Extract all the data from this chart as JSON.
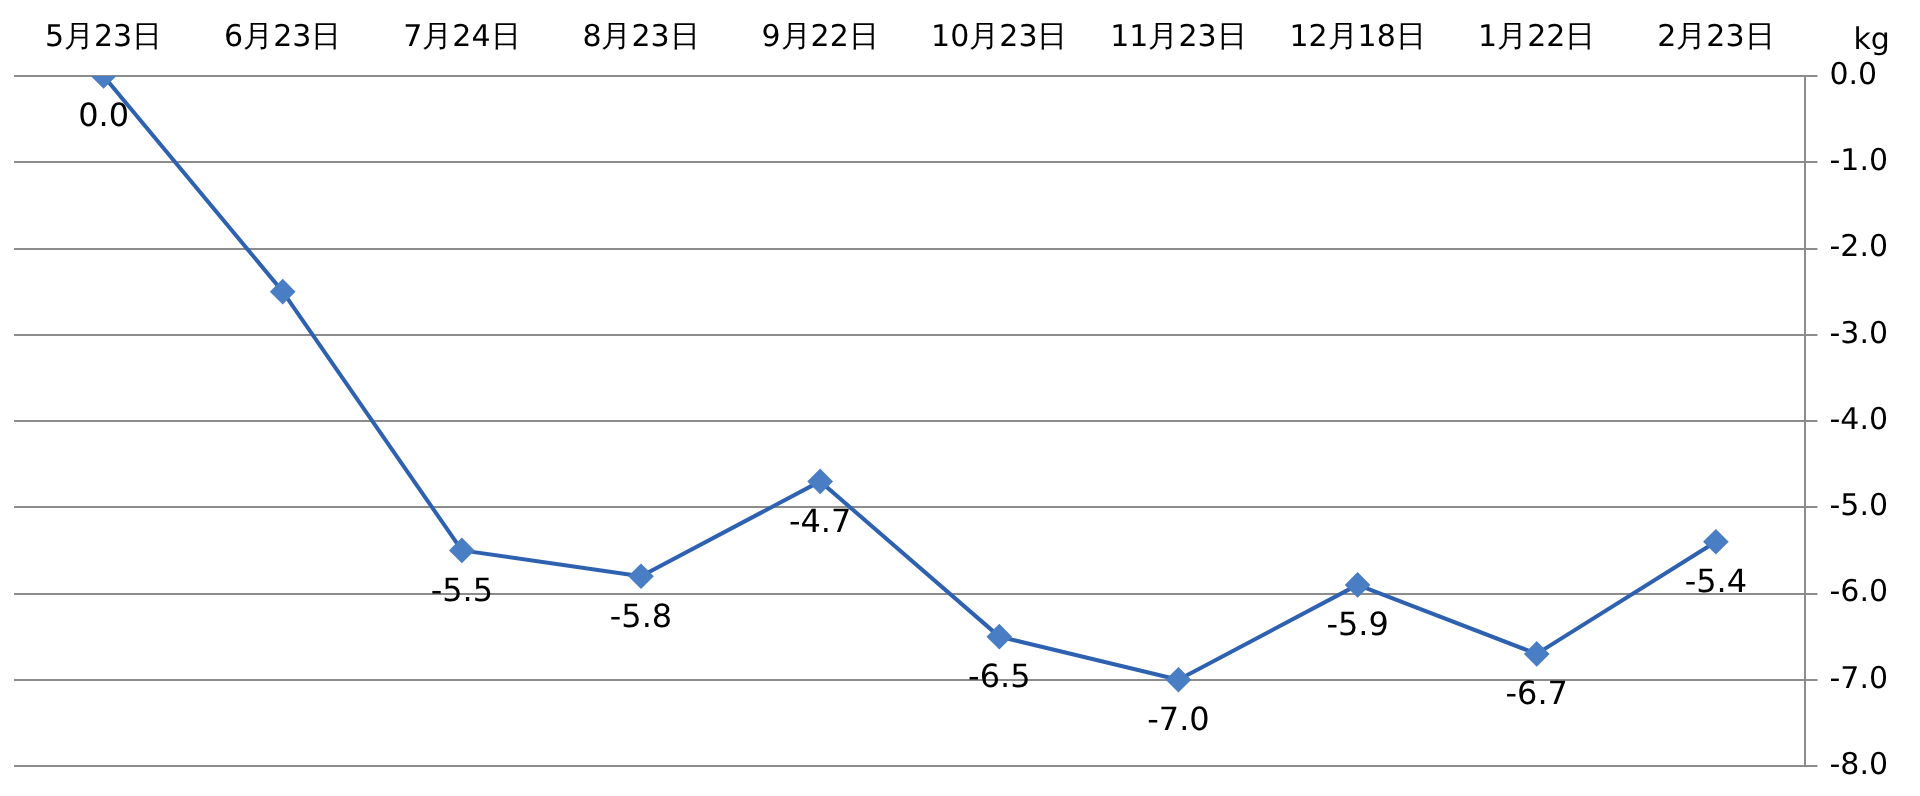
{
  "chart_data": {
    "type": "line",
    "ylabel": "kg",
    "categories": [
      "5月23日",
      "6月23日",
      "7月24日",
      "8月23日",
      "9月22日",
      "10月23日",
      "11月23日",
      "12月18日",
      "1月22日",
      "2月23日"
    ],
    "series": [
      {
        "color": "#2e62b0",
        "values": [
          0.0,
          -2.5,
          -5.5,
          -5.8,
          -4.7,
          -6.5,
          -7.0,
          -5.9,
          -6.7,
          -5.4
        ],
        "value_labels": [
          "0.0",
          null,
          "-5.5",
          "-5.8",
          "-4.7",
          "-6.5",
          "-7.0",
          "-5.9",
          "-6.7",
          "-5.4"
        ]
      }
    ],
    "ylim": [
      -8,
      0
    ],
    "yticks": [
      {
        "value": 0,
        "label": "0.0"
      },
      {
        "value": -1,
        "label": "-1.0"
      },
      {
        "value": -2,
        "label": "-2.0"
      },
      {
        "value": -3,
        "label": "-3.0"
      },
      {
        "value": -4,
        "label": "-4.0"
      },
      {
        "value": -5,
        "label": "-5.0"
      },
      {
        "value": -6,
        "label": "-6.0"
      },
      {
        "value": -7,
        "label": "-7.0"
      },
      {
        "value": -8,
        "label": "-8.0"
      }
    ],
    "grid": "y",
    "marker": "diamond",
    "line_style": "solid",
    "legend": false
  }
}
